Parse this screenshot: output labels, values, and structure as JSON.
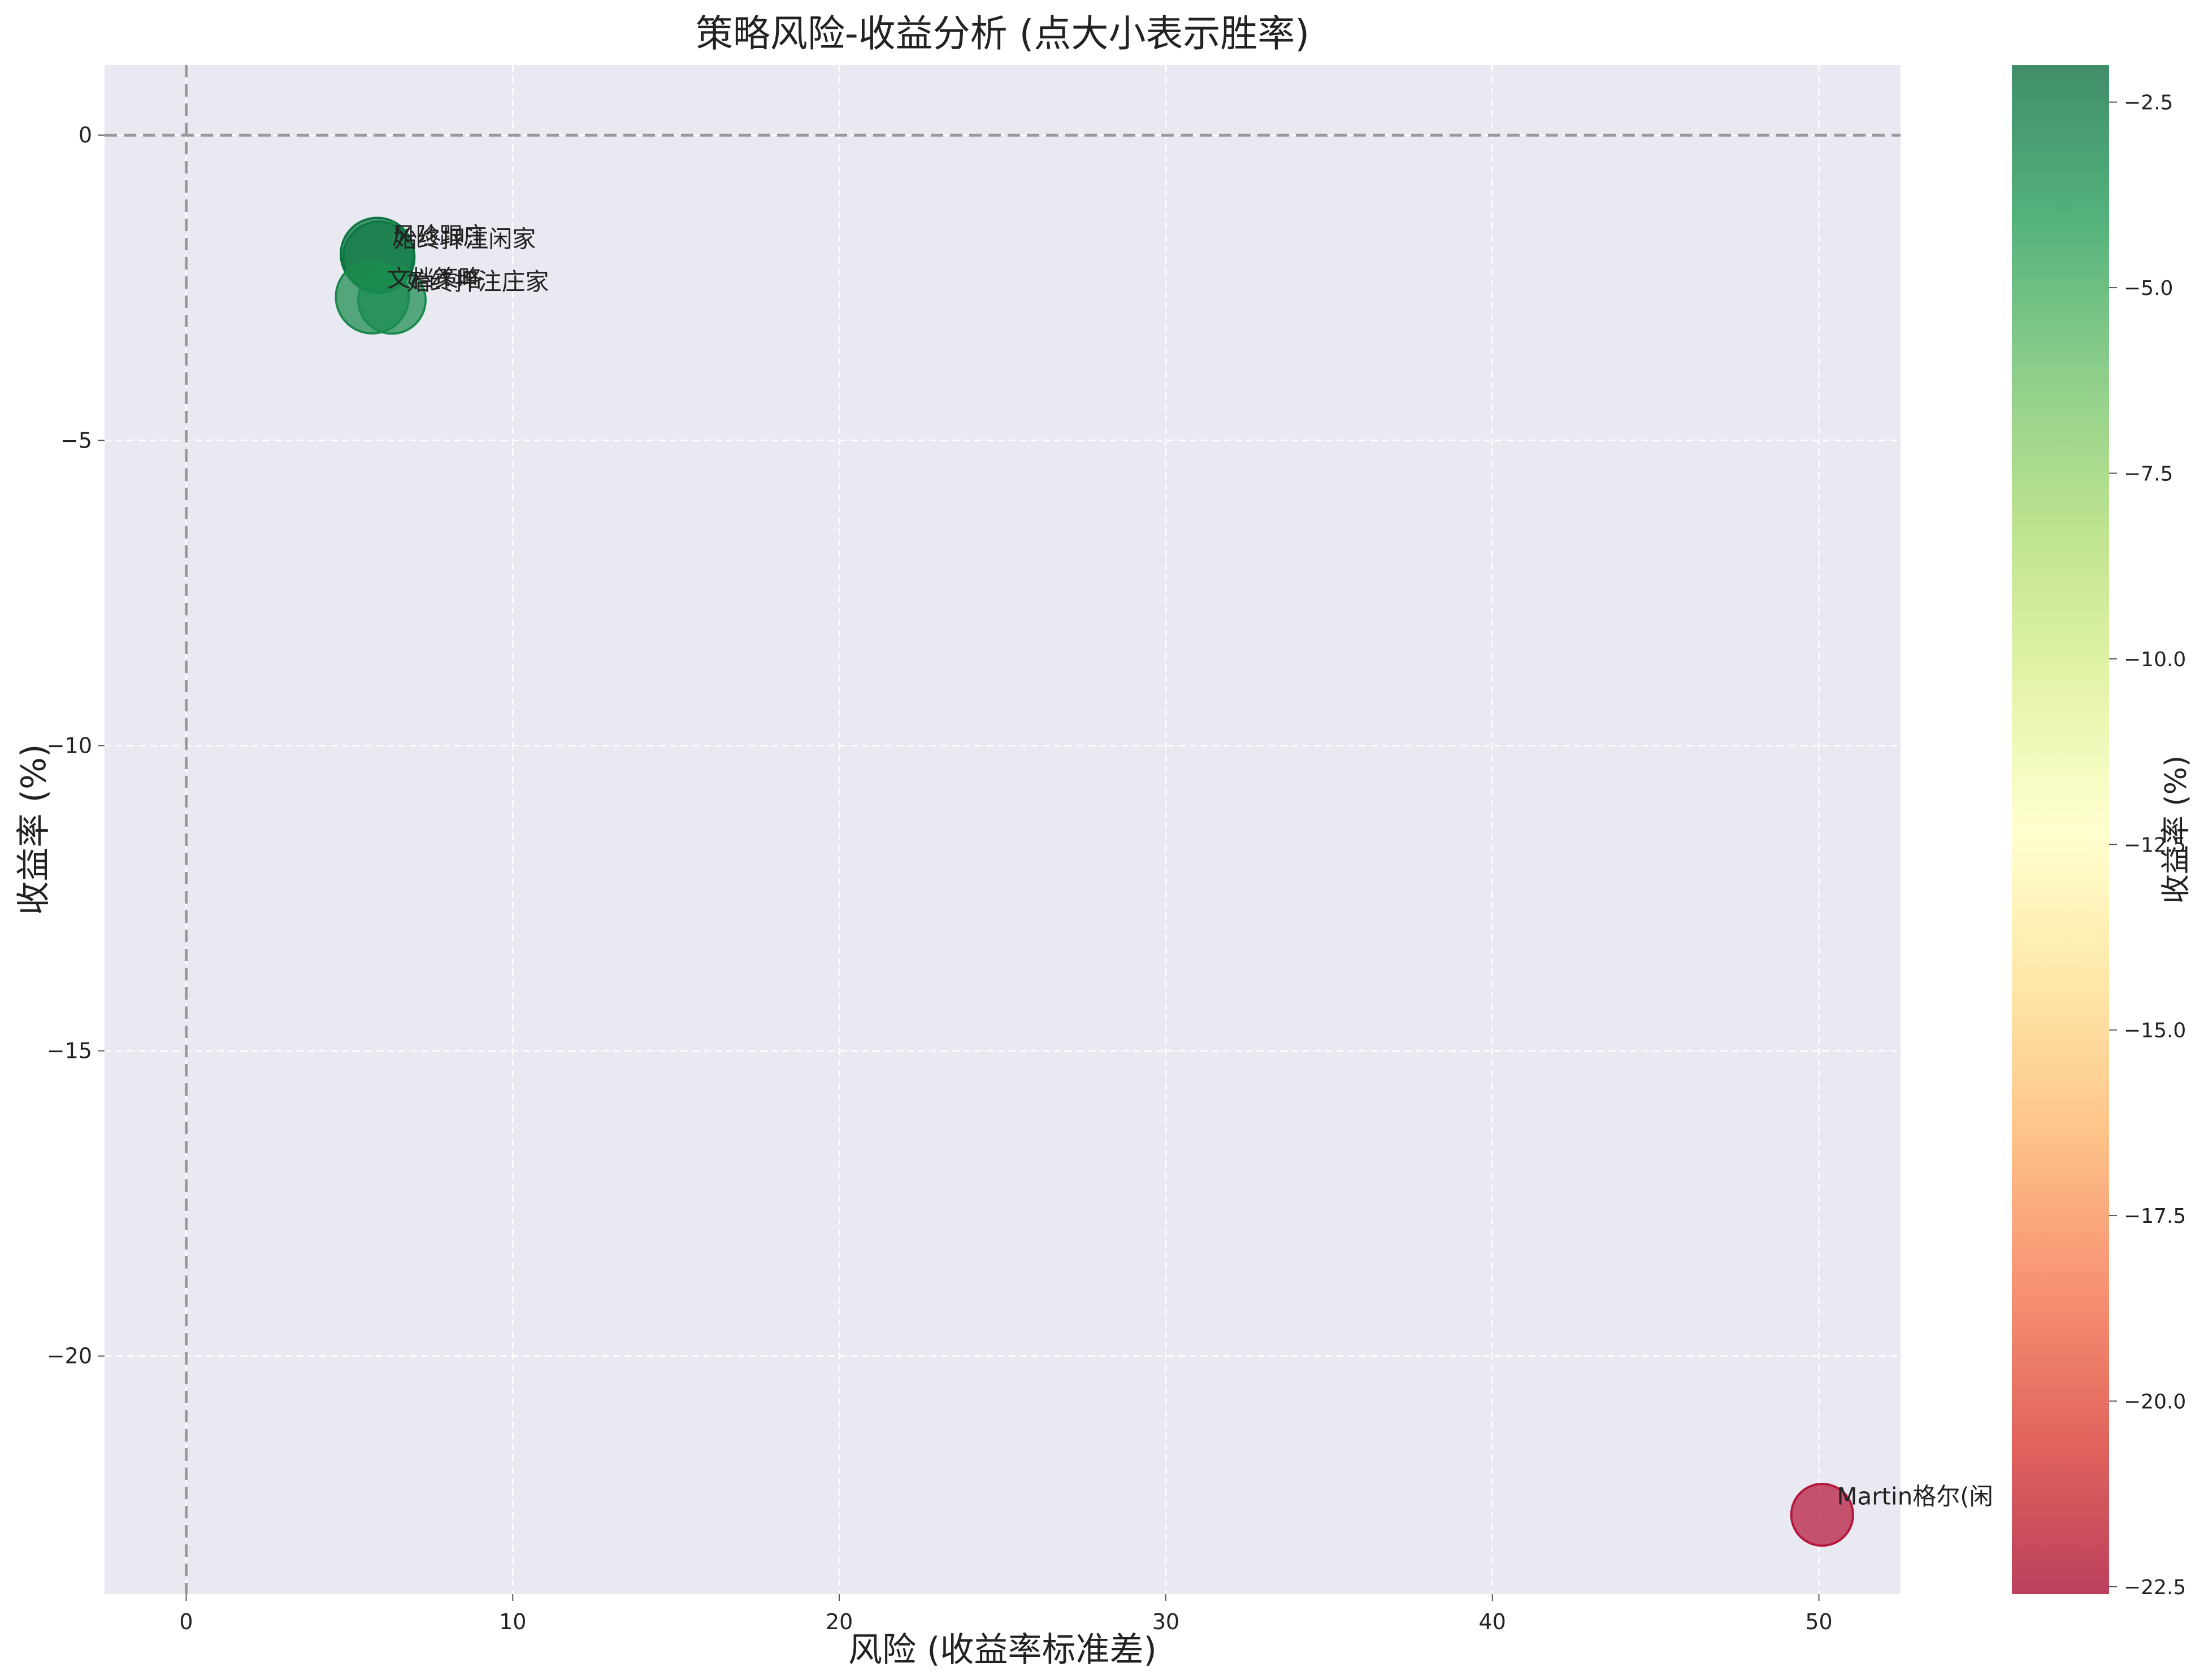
{
  "chart_data": {
    "type": "scatter",
    "title": "策略风险-收益分析 (点大小表示胜率)",
    "xlabel": "风险 (收益率标准差)",
    "ylabel": "收益率 (%)",
    "xlim": [
      -2.5,
      52.5
    ],
    "ylim": [
      -23.9,
      1.15
    ],
    "xticks": [
      0,
      10,
      20,
      30,
      40,
      50
    ],
    "yticks": [
      0,
      -5,
      -10,
      -15,
      -20
    ],
    "grid": true,
    "reference_lines": {
      "x": 0,
      "y": 0,
      "style": "dashed"
    },
    "colorbar": {
      "label": "收益率 (%)",
      "colormap": "RdYlGn",
      "range": [
        -22.6,
        -2.0
      ],
      "ticks": [
        -2.5,
        -5.0,
        -7.5,
        -10.0,
        -12.5,
        -15.0,
        -17.5,
        -20.0,
        -22.5
      ]
    },
    "points": [
      {
        "label": "始终押注闲家",
        "x": 5.9,
        "y": -2.0,
        "color": "#0f7a44",
        "size": 0.9
      },
      {
        "label": "风险跟庄",
        "x": 5.85,
        "y": -1.95,
        "color": "#0d7742",
        "size": 0.92
      },
      {
        "label": "文档策略",
        "x": 5.7,
        "y": -2.65,
        "color": "#1a8a4e",
        "size": 0.92
      },
      {
        "label": "始终押注庄家",
        "x": 6.3,
        "y": -2.7,
        "color": "#1b8c50",
        "size": 0.85
      },
      {
        "label": "Martin格尔(闲",
        "x": 50.1,
        "y": -22.6,
        "color": "#b5173c",
        "size": 0.78
      }
    ]
  }
}
